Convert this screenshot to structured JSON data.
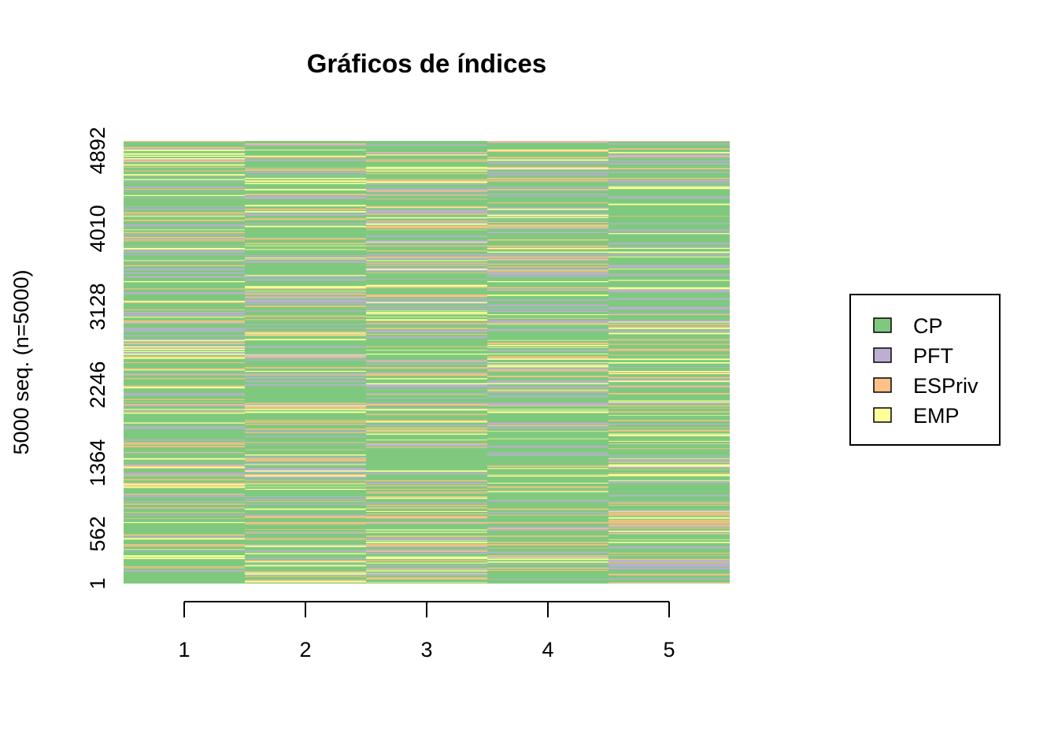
{
  "chart_data": {
    "type": "heatmap",
    "title": "Gráficos de índices",
    "ylabel": "5000 seq. (n=5000)",
    "xlabel": "",
    "n_sequences": 5000,
    "x_ticks": [
      "1",
      "2",
      "3",
      "4",
      "5"
    ],
    "y_ticks": [
      "1",
      "562",
      "1364",
      "2246",
      "3128",
      "4010",
      "4892"
    ],
    "grid": false,
    "legend": {
      "position": "right",
      "entries": [
        {
          "label": "CP",
          "color": "#7fc97f"
        },
        {
          "label": "PFT",
          "color": "#beaed4"
        },
        {
          "label": "ESPriv",
          "color": "#fdc086"
        },
        {
          "label": "EMP",
          "color": "#ffff99"
        }
      ]
    }
  }
}
